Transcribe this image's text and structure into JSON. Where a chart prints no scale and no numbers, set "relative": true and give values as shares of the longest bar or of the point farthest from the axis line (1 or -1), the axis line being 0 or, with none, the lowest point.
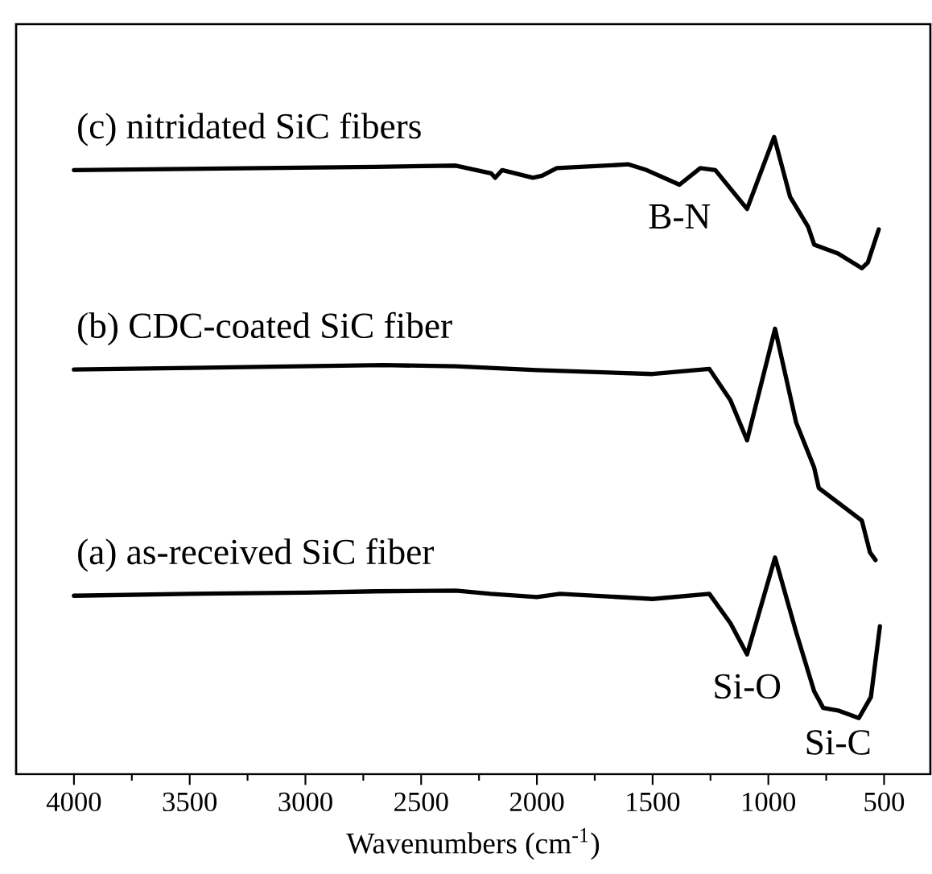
{
  "chart_data": {
    "type": "line",
    "relative": true,
    "xlabel": "Wavenumbers (cm$^{-1}$)",
    "xlim": [
      4250,
      300
    ],
    "xticks": [
      4000,
      {
        "value": 3750,
        "label": null
      },
      3500,
      {
        "value": 3250,
        "label": null
      },
      3000,
      {
        "value": 2750,
        "label": null
      },
      2500,
      {
        "value": 2250,
        "label": null
      },
      2000,
      {
        "value": 1750,
        "label": null
      },
      1500,
      {
        "value": 1250,
        "label": null
      },
      1000,
      {
        "value": 750,
        "label": null
      },
      500
    ],
    "series": [
      {
        "name": "(c) nitridated SiC fibers",
        "color": "#000000",
        "x": [
          4000,
          2700,
          2350,
          2198,
          2180,
          2150,
          2017,
          1978,
          1914,
          1604,
          1526,
          1384,
          1294,
          1229,
          1092,
          975,
          906,
          828,
          802,
          699,
          596,
          570,
          523
        ],
        "values": [
          0.948,
          0.953,
          0.955,
          0.943,
          0.936,
          0.948,
          0.936,
          0.939,
          0.951,
          0.957,
          0.948,
          0.925,
          0.951,
          0.948,
          0.887,
          1.0,
          0.906,
          0.859,
          0.831,
          0.817,
          0.794,
          0.803,
          0.855
        ]
      },
      {
        "name": "(b) CDC-coated SiC fiber",
        "color": "#000000",
        "x": [
          4000,
          2664,
          2350,
          2000,
          1500,
          1255,
          1164,
          1092,
          971,
          880,
          802,
          782,
          596,
          561,
          537
        ],
        "values": [
          0.635,
          0.642,
          0.64,
          0.634,
          0.628,
          0.636,
          0.587,
          0.524,
          0.699,
          0.552,
          0.481,
          0.449,
          0.398,
          0.348,
          0.336
        ]
      },
      {
        "name": "(a) as-received SiC fiber",
        "color": "#000000",
        "x": [
          4000,
          3500,
          3000,
          2700,
          2350,
          2200,
          2000,
          1900,
          1500,
          1255,
          1164,
          1092,
          971,
          880,
          802,
          763,
          699,
          609,
          557,
          518
        ],
        "values": [
          0.28,
          0.283,
          0.285,
          0.287,
          0.288,
          0.283,
          0.278,
          0.283,
          0.275,
          0.283,
          0.237,
          0.188,
          0.34,
          0.223,
          0.13,
          0.104,
          0.1,
          0.088,
          0.121,
          0.232
        ]
      }
    ],
    "annotations": [
      {
        "text": "B-N",
        "x": 1384,
        "y": 0.925
      },
      {
        "text": "Si-O",
        "x": 1092,
        "y": 0.188
      },
      {
        "text": "Si-C",
        "x": 699,
        "y": 0.1
      }
    ]
  }
}
